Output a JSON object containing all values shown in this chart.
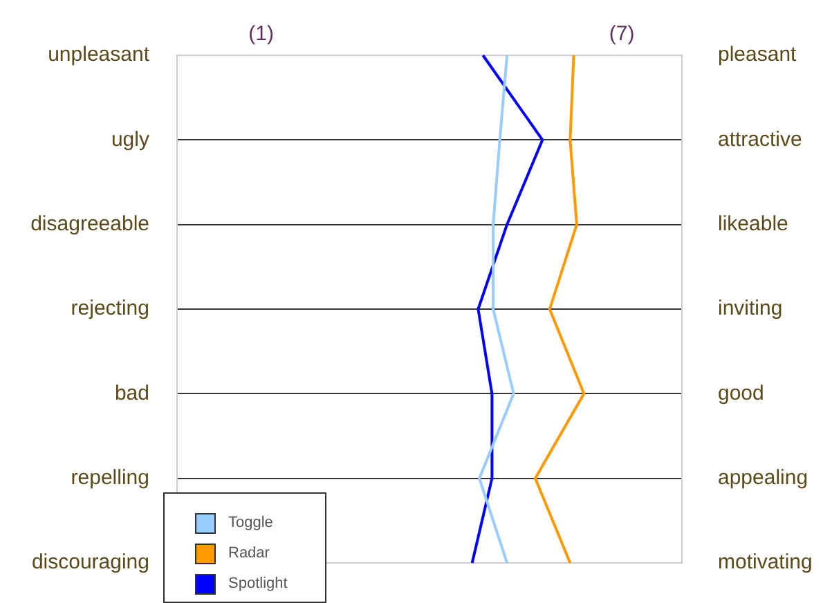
{
  "chart_data": {
    "type": "line",
    "orientation": "horizontal",
    "categories": [
      "unpleasant",
      "ugly",
      "disagreeable",
      "rejecting",
      "bad",
      "repelling",
      "discouraging"
    ],
    "y2_categories": [
      "pleasant",
      "attractive",
      "likeable",
      "inviting",
      "good",
      "appealing",
      "motivating"
    ],
    "xlim": [
      -0.4,
      8
    ],
    "xticks": [
      {
        "value": 1,
        "label": "(1)"
      },
      {
        "value": 7,
        "label": "(7)"
      }
    ],
    "series": [
      {
        "name": "Toggle",
        "color": "#99ccff",
        "values": [
          5.09,
          4.97,
          4.86,
          4.86,
          5.2,
          4.63,
          5.09
        ]
      },
      {
        "name": "Radar",
        "color": "#ff9900",
        "values": [
          6.2,
          6.14,
          6.25,
          5.8,
          6.37,
          5.56,
          6.14
        ]
      },
      {
        "name": "Spotlight",
        "color": "#0000ff",
        "values": [
          4.69,
          5.68,
          5.09,
          4.61,
          4.84,
          4.84,
          4.51
        ]
      }
    ],
    "grid": "y",
    "legend": "bottom left",
    "marker": "none",
    "line_style": "solid"
  }
}
